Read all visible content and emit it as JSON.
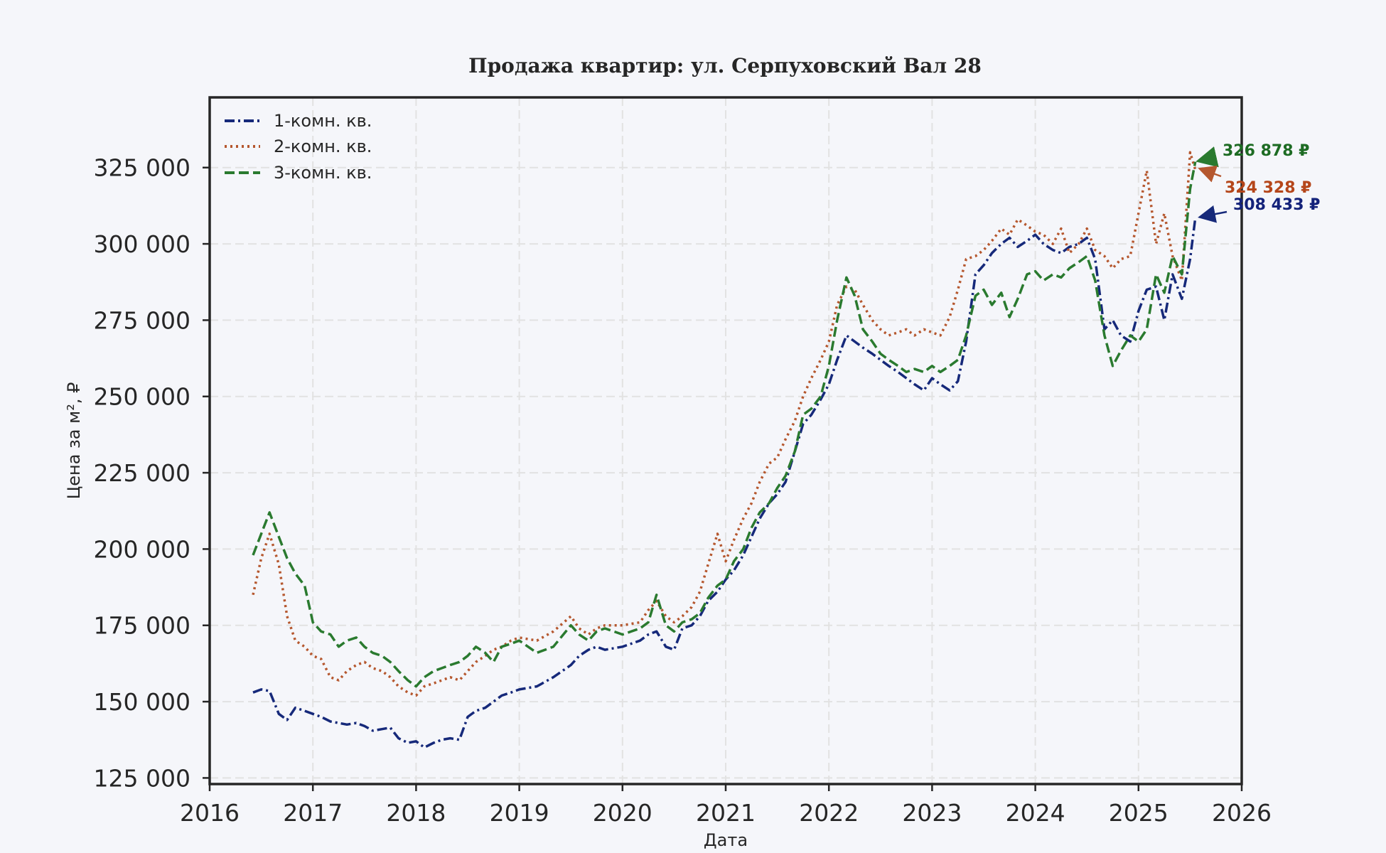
{
  "chart_data": {
    "type": "line",
    "title": "Продажа квартир: ул. Серпуховский Вал 28",
    "xlabel": "Дата",
    "ylabel": "Цена за м², ₽",
    "xlim": [
      2016.0,
      2026.0
    ],
    "ylim": [
      123000,
      348000
    ],
    "x_ticks": [
      "2016",
      "2017",
      "2018",
      "2019",
      "2020",
      "2021",
      "2022",
      "2023",
      "2024",
      "2025",
      "2026"
    ],
    "y_ticks": [
      "125 000",
      "150 000",
      "175 000",
      "200 000",
      "225 000",
      "250 000",
      "275 000",
      "300 000",
      "325 000"
    ],
    "grid": true,
    "legend_position": "top-left",
    "series": [
      {
        "name": "1-комн. кв.",
        "color": "#16297a",
        "style": "dashdot",
        "x": [
          2016.42,
          2016.5,
          2016.58,
          2016.67,
          2016.75,
          2016.83,
          2016.92,
          2017.0,
          2017.08,
          2017.17,
          2017.25,
          2017.33,
          2017.42,
          2017.5,
          2017.58,
          2017.67,
          2017.75,
          2017.83,
          2017.92,
          2018.0,
          2018.08,
          2018.17,
          2018.25,
          2018.33,
          2018.42,
          2018.5,
          2018.58,
          2018.67,
          2018.75,
          2018.83,
          2018.92,
          2019.0,
          2019.17,
          2019.33,
          2019.5,
          2019.58,
          2019.67,
          2019.75,
          2019.83,
          2020.0,
          2020.17,
          2020.25,
          2020.33,
          2020.42,
          2020.5,
          2020.58,
          2020.67,
          2020.75,
          2020.83,
          2020.92,
          2021.0,
          2021.08,
          2021.17,
          2021.25,
          2021.33,
          2021.42,
          2021.5,
          2021.58,
          2021.67,
          2021.75,
          2021.83,
          2021.92,
          2022.0,
          2022.08,
          2022.17,
          2022.25,
          2022.33,
          2022.42,
          2022.5,
          2022.58,
          2022.67,
          2022.75,
          2022.83,
          2022.92,
          2023.0,
          2023.08,
          2023.17,
          2023.25,
          2023.33,
          2023.42,
          2023.5,
          2023.58,
          2023.67,
          2023.75,
          2023.83,
          2023.92,
          2024.0,
          2024.08,
          2024.17,
          2024.25,
          2024.33,
          2024.42,
          2024.5,
          2024.58,
          2024.67,
          2024.75,
          2024.83,
          2024.92,
          2025.0,
          2025.08,
          2025.17,
          2025.25,
          2025.33,
          2025.42,
          2025.5,
          2025.55
        ],
        "y": [
          153000,
          154000,
          153500,
          146000,
          144000,
          148000,
          147000,
          146000,
          145000,
          143500,
          143000,
          142500,
          143000,
          142000,
          140500,
          141000,
          141500,
          138000,
          136500,
          137000,
          135000,
          136500,
          137500,
          138000,
          137500,
          145000,
          147000,
          148000,
          150000,
          152000,
          153000,
          154000,
          155000,
          158000,
          162000,
          165000,
          167000,
          168000,
          167000,
          168000,
          170000,
          172000,
          173000,
          168000,
          167000,
          174000,
          175000,
          178000,
          183000,
          186000,
          190000,
          193000,
          198000,
          204000,
          210000,
          215000,
          218000,
          222000,
          232000,
          241000,
          244000,
          249000,
          254000,
          262000,
          270000,
          268000,
          266000,
          264000,
          262000,
          260000,
          258000,
          256000,
          254000,
          252000,
          256000,
          254000,
          252000,
          255000,
          268000,
          290000,
          293000,
          297000,
          300000,
          302000,
          299000,
          301000,
          303000,
          300000,
          298000,
          297000,
          299000,
          300000,
          302000,
          295000,
          272000,
          275000,
          270000,
          268000,
          278000,
          285000,
          286000,
          275000,
          290000,
          282000,
          295000,
          308433
        ]
      },
      {
        "name": "2-комн. кв.",
        "color": "#b5572e",
        "style": "dotted",
        "x": [
          2016.42,
          2016.5,
          2016.58,
          2016.67,
          2016.75,
          2016.83,
          2016.92,
          2017.0,
          2017.08,
          2017.17,
          2017.25,
          2017.33,
          2017.42,
          2017.5,
          2017.58,
          2017.67,
          2017.75,
          2017.83,
          2017.92,
          2018.0,
          2018.08,
          2018.17,
          2018.25,
          2018.33,
          2018.42,
          2018.5,
          2018.58,
          2018.67,
          2018.75,
          2018.83,
          2018.92,
          2019.0,
          2019.17,
          2019.33,
          2019.5,
          2019.58,
          2019.67,
          2019.75,
          2019.83,
          2020.0,
          2020.17,
          2020.25,
          2020.33,
          2020.42,
          2020.5,
          2020.58,
          2020.67,
          2020.75,
          2020.83,
          2020.92,
          2021.0,
          2021.08,
          2021.17,
          2021.25,
          2021.33,
          2021.42,
          2021.5,
          2021.58,
          2021.67,
          2021.75,
          2021.83,
          2021.92,
          2022.0,
          2022.08,
          2022.17,
          2022.25,
          2022.33,
          2022.42,
          2022.5,
          2022.58,
          2022.67,
          2022.75,
          2022.83,
          2022.92,
          2023.0,
          2023.08,
          2023.17,
          2023.25,
          2023.33,
          2023.42,
          2023.5,
          2023.58,
          2023.67,
          2023.75,
          2023.83,
          2023.92,
          2024.0,
          2024.08,
          2024.17,
          2024.25,
          2024.33,
          2024.42,
          2024.5,
          2024.58,
          2024.67,
          2024.75,
          2024.83,
          2024.92,
          2025.0,
          2025.08,
          2025.17,
          2025.25,
          2025.33,
          2025.42,
          2025.5,
          2025.55
        ],
        "y": [
          185000,
          197000,
          205000,
          195000,
          178000,
          170000,
          168000,
          165000,
          164000,
          158000,
          157000,
          160000,
          162000,
          163000,
          161000,
          160000,
          158000,
          155000,
          153000,
          152000,
          155000,
          156000,
          157000,
          158000,
          157000,
          160000,
          163000,
          165000,
          167000,
          168000,
          170000,
          171000,
          170000,
          173000,
          178000,
          174000,
          172000,
          174000,
          175000,
          175000,
          176000,
          180000,
          183000,
          178000,
          176000,
          178000,
          181000,
          186000,
          195000,
          205000,
          196000,
          203000,
          210000,
          215000,
          222000,
          228000,
          230000,
          236000,
          242000,
          250000,
          256000,
          262000,
          268000,
          280000,
          286000,
          285000,
          280000,
          275000,
          272000,
          270000,
          271000,
          272000,
          270000,
          272000,
          271000,
          270000,
          276000,
          285000,
          295000,
          296000,
          298000,
          301000,
          305000,
          303000,
          308000,
          306000,
          304000,
          303000,
          300000,
          305000,
          297000,
          300000,
          305000,
          298000,
          296000,
          292000,
          295000,
          296000,
          310000,
          324000,
          300000,
          310000,
          296000,
          288000,
          330000,
          324328
        ]
      },
      {
        "name": "3-комн. кв.",
        "color": "#2a7a2f",
        "style": "dashed",
        "x": [
          2016.42,
          2016.5,
          2016.58,
          2016.67,
          2016.75,
          2016.83,
          2016.92,
          2017.0,
          2017.08,
          2017.17,
          2017.25,
          2017.33,
          2017.42,
          2017.5,
          2017.58,
          2017.67,
          2017.75,
          2017.83,
          2017.92,
          2018.0,
          2018.08,
          2018.17,
          2018.25,
          2018.33,
          2018.42,
          2018.5,
          2018.58,
          2018.67,
          2018.75,
          2018.83,
          2018.92,
          2019.0,
          2019.17,
          2019.33,
          2019.5,
          2019.58,
          2019.67,
          2019.75,
          2019.83,
          2020.0,
          2020.17,
          2020.25,
          2020.33,
          2020.42,
          2020.5,
          2020.58,
          2020.67,
          2020.75,
          2020.83,
          2020.92,
          2021.0,
          2021.08,
          2021.17,
          2021.25,
          2021.33,
          2021.42,
          2021.5,
          2021.58,
          2021.67,
          2021.75,
          2021.83,
          2021.92,
          2022.0,
          2022.08,
          2022.17,
          2022.25,
          2022.33,
          2022.42,
          2022.5,
          2022.58,
          2022.67,
          2022.75,
          2022.83,
          2022.92,
          2023.0,
          2023.08,
          2023.17,
          2023.25,
          2023.33,
          2023.42,
          2023.5,
          2023.58,
          2023.67,
          2023.75,
          2023.83,
          2023.92,
          2024.0,
          2024.08,
          2024.17,
          2024.25,
          2024.33,
          2024.42,
          2024.5,
          2024.58,
          2024.67,
          2024.75,
          2024.83,
          2024.92,
          2025.0,
          2025.08,
          2025.17,
          2025.25,
          2025.33,
          2025.42,
          2025.5,
          2025.55
        ],
        "y": [
          198000,
          205000,
          212000,
          204000,
          197000,
          192000,
          188000,
          176000,
          173000,
          172000,
          168000,
          170000,
          171000,
          168000,
          166000,
          165000,
          163000,
          160000,
          157000,
          155000,
          158000,
          160000,
          161000,
          162000,
          163000,
          165000,
          168000,
          166000,
          163000,
          168000,
          169000,
          170000,
          166000,
          168000,
          175000,
          172000,
          170000,
          173000,
          174000,
          172000,
          174000,
          176000,
          185000,
          175000,
          173000,
          176000,
          177000,
          179000,
          184000,
          188000,
          190000,
          196000,
          200000,
          207000,
          212000,
          215000,
          220000,
          224000,
          232000,
          244000,
          246000,
          250000,
          260000,
          275000,
          289000,
          283000,
          272000,
          268000,
          264000,
          262000,
          260000,
          258000,
          259000,
          258000,
          260000,
          258000,
          260000,
          262000,
          270000,
          283000,
          285000,
          280000,
          284000,
          276000,
          282000,
          290000,
          291000,
          288000,
          290000,
          289000,
          292000,
          294000,
          296000,
          288000,
          270000,
          260000,
          265000,
          270000,
          268000,
          272000,
          290000,
          284000,
          296000,
          290000,
          318000,
          326878
        ]
      }
    ],
    "annotations": [
      {
        "label": "326 878 ₽",
        "series": "3-комн. кв.",
        "color": "#1d6b23"
      },
      {
        "label": "324 328 ₽",
        "series": "2-комн. кв.",
        "color": "#b5461a"
      },
      {
        "label": "308 433 ₽",
        "series": "1-комн. кв.",
        "color": "#14227a"
      }
    ]
  }
}
